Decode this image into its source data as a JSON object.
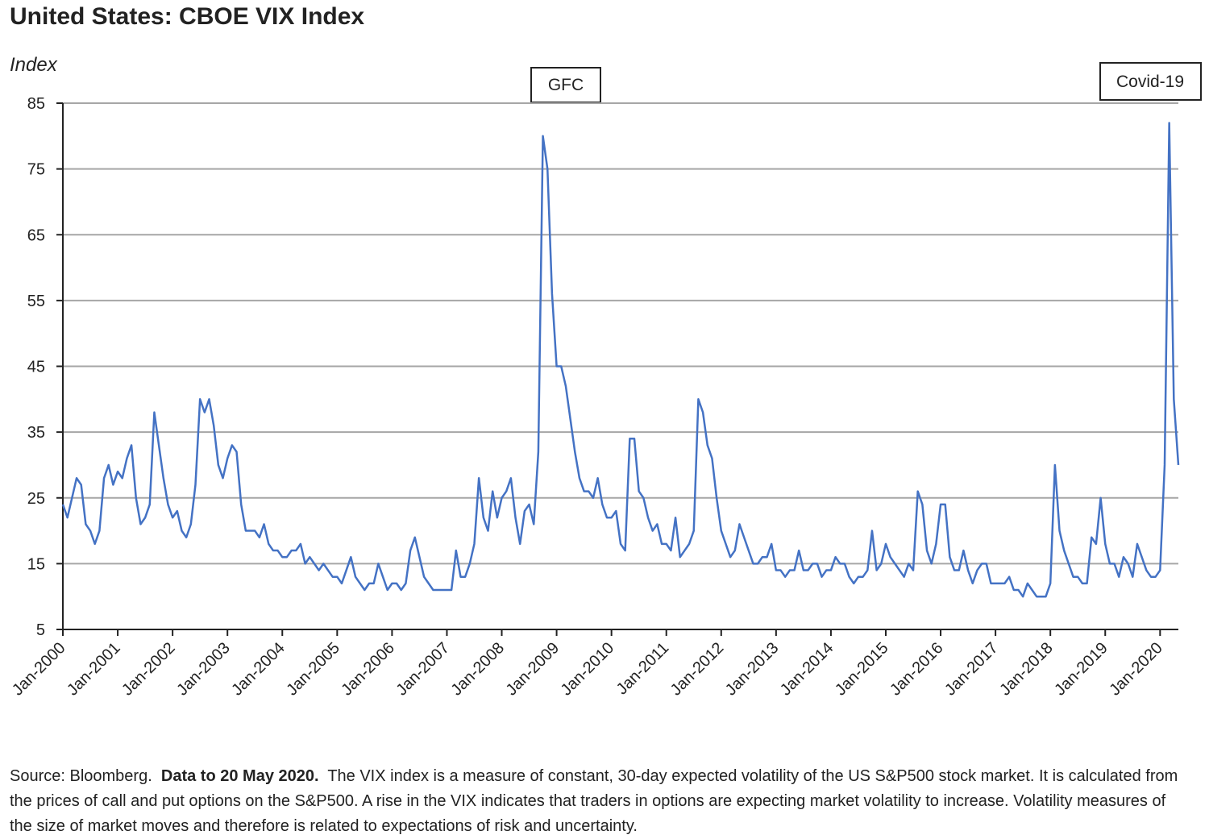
{
  "chart_data": {
    "type": "line",
    "title": "United States: CBOE VIX Index",
    "y_label": "Index",
    "annotations": [
      "GFC",
      "Covid-19"
    ],
    "footnote": {
      "source": "Source: Bloomberg.",
      "data_note": "Data to 20 May 2020.",
      "description": "The VIX index is a measure of constant, 30-day expected volatility of the US S&P500 stock market. It is calculated from the prices of call and put options on the S&P500. A rise in the VIX indicates that traders in options are expecting market volatility to increase. Volatility measures of the size of market moves and therefore is related to expectations of risk and uncertainty."
    },
    "x": [
      "2000-01",
      "2000-02",
      "2000-03",
      "2000-04",
      "2000-05",
      "2000-06",
      "2000-07",
      "2000-08",
      "2000-09",
      "2000-10",
      "2000-11",
      "2000-12",
      "2001-01",
      "2001-02",
      "2001-03",
      "2001-04",
      "2001-05",
      "2001-06",
      "2001-07",
      "2001-08",
      "2001-09",
      "2001-10",
      "2001-11",
      "2001-12",
      "2002-01",
      "2002-02",
      "2002-03",
      "2002-04",
      "2002-05",
      "2002-06",
      "2002-07",
      "2002-08",
      "2002-09",
      "2002-10",
      "2002-11",
      "2002-12",
      "2003-01",
      "2003-02",
      "2003-03",
      "2003-04",
      "2003-05",
      "2003-06",
      "2003-07",
      "2003-08",
      "2003-09",
      "2003-10",
      "2003-11",
      "2003-12",
      "2004-01",
      "2004-02",
      "2004-03",
      "2004-04",
      "2004-05",
      "2004-06",
      "2004-07",
      "2004-08",
      "2004-09",
      "2004-10",
      "2004-11",
      "2004-12",
      "2005-01",
      "2005-02",
      "2005-03",
      "2005-04",
      "2005-05",
      "2005-06",
      "2005-07",
      "2005-08",
      "2005-09",
      "2005-10",
      "2005-11",
      "2005-12",
      "2006-01",
      "2006-02",
      "2006-03",
      "2006-04",
      "2006-05",
      "2006-06",
      "2006-07",
      "2006-08",
      "2006-09",
      "2006-10",
      "2006-11",
      "2006-12",
      "2007-01",
      "2007-02",
      "2007-03",
      "2007-04",
      "2007-05",
      "2007-06",
      "2007-07",
      "2007-08",
      "2007-09",
      "2007-10",
      "2007-11",
      "2007-12",
      "2008-01",
      "2008-02",
      "2008-03",
      "2008-04",
      "2008-05",
      "2008-06",
      "2008-07",
      "2008-08",
      "2008-09",
      "2008-10",
      "2008-11",
      "2008-12",
      "2009-01",
      "2009-02",
      "2009-03",
      "2009-04",
      "2009-05",
      "2009-06",
      "2009-07",
      "2009-08",
      "2009-09",
      "2009-10",
      "2009-11",
      "2009-12",
      "2010-01",
      "2010-02",
      "2010-03",
      "2010-04",
      "2010-05",
      "2010-06",
      "2010-07",
      "2010-08",
      "2010-09",
      "2010-10",
      "2010-11",
      "2010-12",
      "2011-01",
      "2011-02",
      "2011-03",
      "2011-04",
      "2011-05",
      "2011-06",
      "2011-07",
      "2011-08",
      "2011-09",
      "2011-10",
      "2011-11",
      "2011-12",
      "2012-01",
      "2012-02",
      "2012-03",
      "2012-04",
      "2012-05",
      "2012-06",
      "2012-07",
      "2012-08",
      "2012-09",
      "2012-10",
      "2012-11",
      "2012-12",
      "2013-01",
      "2013-02",
      "2013-03",
      "2013-04",
      "2013-05",
      "2013-06",
      "2013-07",
      "2013-08",
      "2013-09",
      "2013-10",
      "2013-11",
      "2013-12",
      "2014-01",
      "2014-02",
      "2014-03",
      "2014-04",
      "2014-05",
      "2014-06",
      "2014-07",
      "2014-08",
      "2014-09",
      "2014-10",
      "2014-11",
      "2014-12",
      "2015-01",
      "2015-02",
      "2015-03",
      "2015-04",
      "2015-05",
      "2015-06",
      "2015-07",
      "2015-08",
      "2015-09",
      "2015-10",
      "2015-11",
      "2015-12",
      "2016-01",
      "2016-02",
      "2016-03",
      "2016-04",
      "2016-05",
      "2016-06",
      "2016-07",
      "2016-08",
      "2016-09",
      "2016-10",
      "2016-11",
      "2016-12",
      "2017-01",
      "2017-02",
      "2017-03",
      "2017-04",
      "2017-05",
      "2017-06",
      "2017-07",
      "2017-08",
      "2017-09",
      "2017-10",
      "2017-11",
      "2017-12",
      "2018-01",
      "2018-02",
      "2018-03",
      "2018-04",
      "2018-05",
      "2018-06",
      "2018-07",
      "2018-08",
      "2018-09",
      "2018-10",
      "2018-11",
      "2018-12",
      "2019-01",
      "2019-02",
      "2019-03",
      "2019-04",
      "2019-05",
      "2019-06",
      "2019-07",
      "2019-08",
      "2019-09",
      "2019-10",
      "2019-11",
      "2019-12",
      "2020-01",
      "2020-02",
      "2020-03",
      "2020-04",
      "2020-05"
    ],
    "series": [
      {
        "name": "CBOE VIX Index",
        "color": "#4472c4",
        "values": [
          24,
          22,
          25,
          28,
          27,
          21,
          20,
          18,
          20,
          28,
          30,
          27,
          29,
          28,
          31,
          33,
          25,
          21,
          22,
          24,
          38,
          33,
          28,
          24,
          22,
          23,
          20,
          19,
          21,
          27,
          40,
          38,
          40,
          36,
          30,
          28,
          31,
          33,
          32,
          24,
          20,
          20,
          20,
          19,
          21,
          18,
          17,
          17,
          16,
          16,
          17,
          17,
          18,
          15,
          16,
          15,
          14,
          15,
          14,
          13,
          13,
          12,
          14,
          16,
          13,
          12,
          11,
          12,
          12,
          15,
          13,
          11,
          12,
          12,
          11,
          12,
          17,
          19,
          16,
          13,
          12,
          11,
          11,
          11,
          11,
          11,
          17,
          13,
          13,
          15,
          18,
          28,
          22,
          20,
          26,
          22,
          25,
          26,
          28,
          22,
          18,
          23,
          24,
          21,
          32,
          80,
          75,
          56,
          45,
          45,
          42,
          37,
          32,
          28,
          26,
          26,
          25,
          28,
          24,
          22,
          22,
          23,
          18,
          17,
          34,
          34,
          26,
          25,
          22,
          20,
          21,
          18,
          18,
          17,
          22,
          16,
          17,
          18,
          20,
          40,
          38,
          33,
          31,
          25,
          20,
          18,
          16,
          17,
          21,
          19,
          17,
          15,
          15,
          16,
          16,
          18,
          14,
          14,
          13,
          14,
          14,
          17,
          14,
          14,
          15,
          15,
          13,
          14,
          14,
          16,
          15,
          15,
          13,
          12,
          13,
          13,
          14,
          20,
          14,
          15,
          18,
          16,
          15,
          14,
          13,
          15,
          14,
          26,
          24,
          17,
          15,
          18,
          24,
          24,
          16,
          14,
          14,
          17,
          14,
          12,
          14,
          15,
          15,
          12,
          12,
          12,
          12,
          13,
          11,
          11,
          10,
          12,
          11,
          10,
          10,
          10,
          12,
          30,
          20,
          17,
          15,
          13,
          13,
          12,
          12,
          19,
          18,
          25,
          18,
          15,
          15,
          13,
          16,
          15,
          13,
          18,
          16,
          14,
          13,
          13,
          14,
          30,
          82,
          40,
          30
        ]
      }
    ],
    "xlim": [
      "2000-01",
      "2020-05"
    ],
    "xticks": [
      {
        "value": "2000-01",
        "label": "Jan-2000"
      },
      {
        "value": "2001-01",
        "label": "Jan-2001"
      },
      {
        "value": "2002-01",
        "label": "Jan-2002"
      },
      {
        "value": "2003-01",
        "label": "Jan-2003"
      },
      {
        "value": "2004-01",
        "label": "Jan-2004"
      },
      {
        "value": "2005-01",
        "label": "Jan-2005"
      },
      {
        "value": "2006-01",
        "label": "Jan-2006"
      },
      {
        "value": "2007-01",
        "label": "Jan-2007"
      },
      {
        "value": "2008-01",
        "label": "Jan-2008"
      },
      {
        "value": "2009-01",
        "label": "Jan-2009"
      },
      {
        "value": "2010-01",
        "label": "Jan-2010"
      },
      {
        "value": "2011-01",
        "label": "Jan-2011"
      },
      {
        "value": "2012-01",
        "label": "Jan-2012"
      },
      {
        "value": "2013-01",
        "label": "Jan-2013"
      },
      {
        "value": "2014-01",
        "label": "Jan-2014"
      },
      {
        "value": "2015-01",
        "label": "Jan-2015"
      },
      {
        "value": "2016-01",
        "label": "Jan-2016"
      },
      {
        "value": "2017-01",
        "label": "Jan-2017"
      },
      {
        "value": "2018-01",
        "label": "Jan-2018"
      },
      {
        "value": "2019-01",
        "label": "Jan-2019"
      },
      {
        "value": "2020-01",
        "label": "Jan-2020"
      }
    ],
    "ylim": [
      5,
      85
    ],
    "yticks": [
      5,
      15,
      25,
      35,
      45,
      55,
      65,
      75,
      85
    ],
    "grid": true
  }
}
